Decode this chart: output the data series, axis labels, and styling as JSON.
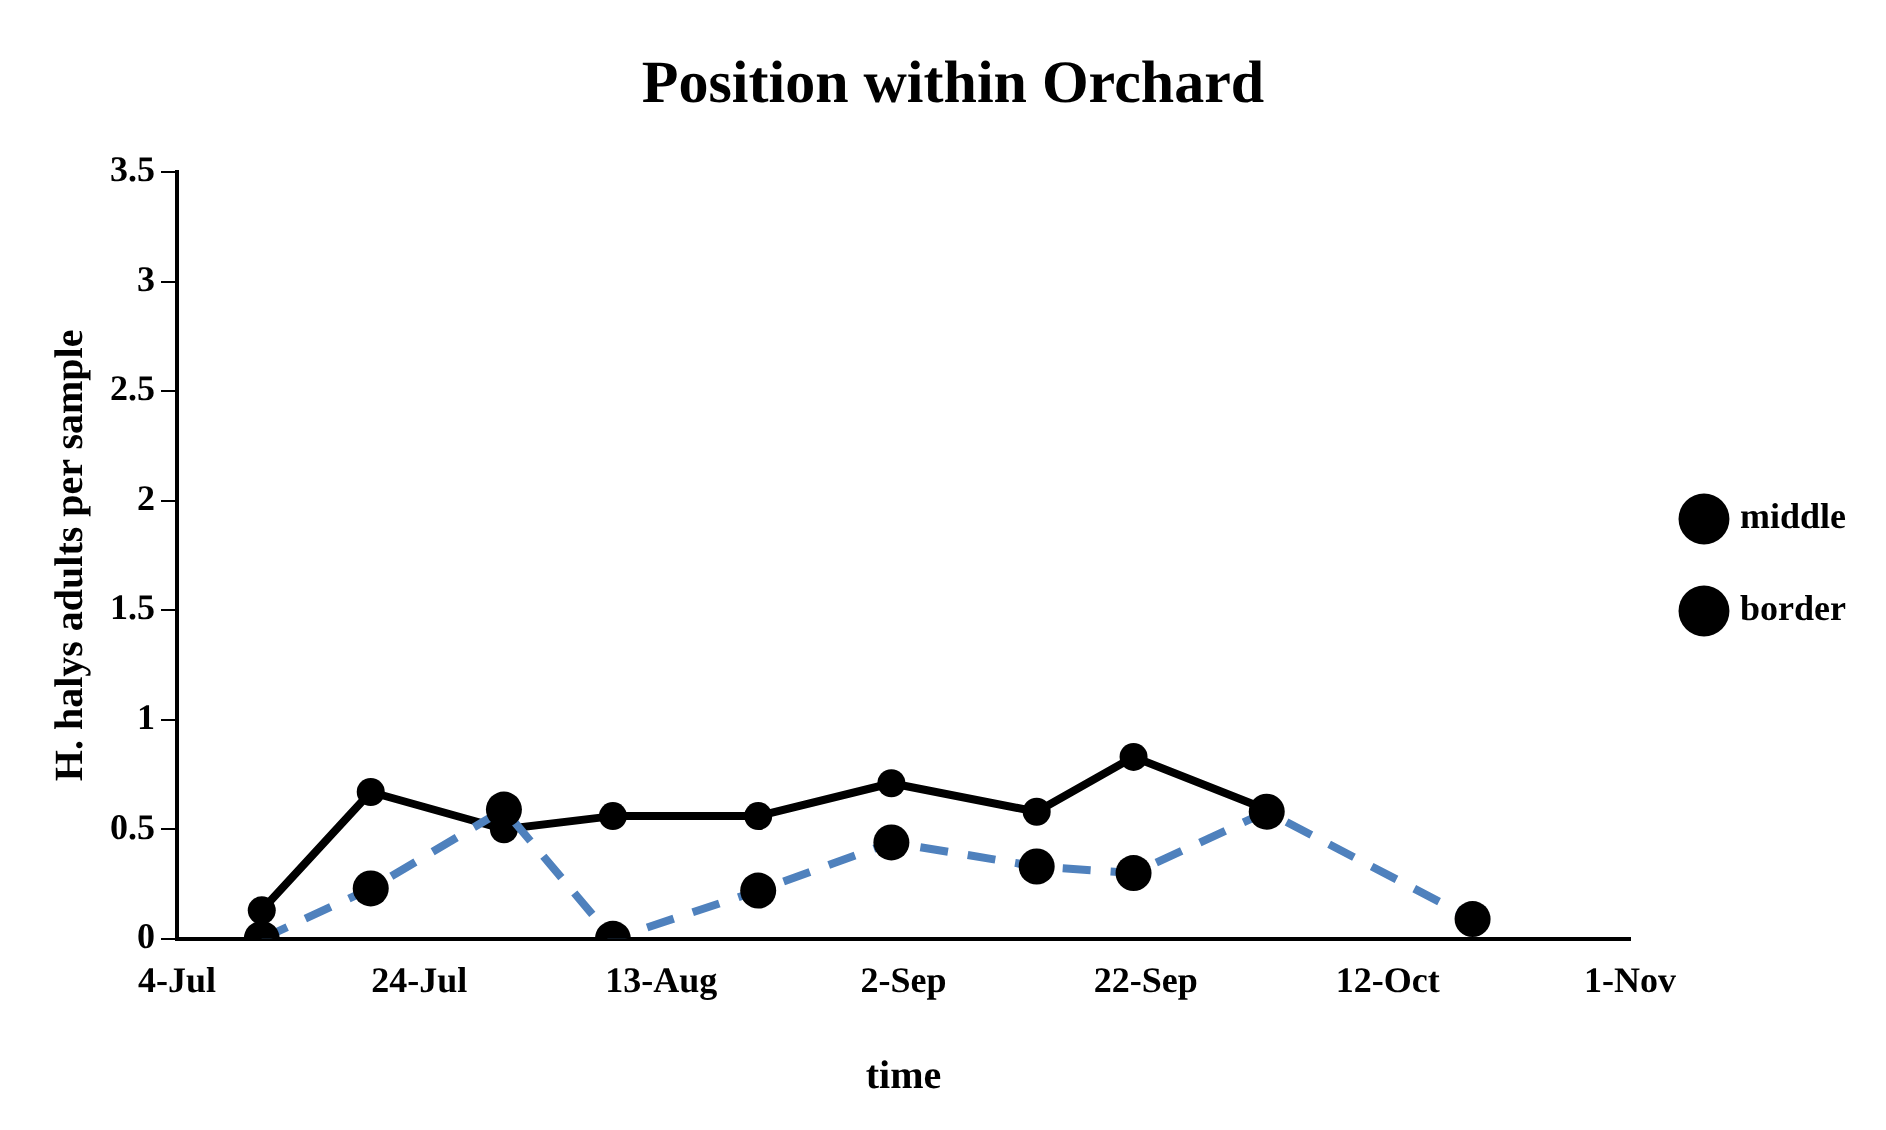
{
  "chart_data": {
    "type": "line",
    "title": "Position within Orchard",
    "xlabel": "time",
    "ylabel": "H. halys adults per sample",
    "x": [
      "--07-11",
      "--07-20",
      "--07-31",
      "--08-09",
      "--08-21",
      "--09-01",
      "--09-13",
      "--09-21",
      "--10-02",
      "--10-19"
    ],
    "series": [
      {
        "name": "border",
        "color": "#000000",
        "line_style": "solid",
        "values": [
          0.13,
          0.67,
          0.5,
          0.56,
          0.56,
          0.71,
          0.58,
          0.83,
          0.59,
          null
        ]
      },
      {
        "name": "middle",
        "color": "#4f81bd",
        "line_style": "dashed",
        "values": [
          0,
          0.23,
          0.59,
          0,
          0.22,
          0.44,
          0.33,
          0.3,
          0.58,
          0.09
        ]
      }
    ],
    "xlim": [
      "--07-04",
      "--11-01"
    ],
    "xticks": [
      {
        "value": "--07-04",
        "label": "4-Jul"
      },
      {
        "value": "--07-24",
        "label": "24-Jul"
      },
      {
        "value": "--08-13",
        "label": "13-Aug"
      },
      {
        "value": "--09-02",
        "label": "2-Sep"
      },
      {
        "value": "--09-22",
        "label": "22-Sep"
      },
      {
        "value": "--10-12",
        "label": "12-Oct"
      },
      {
        "value": "--11-01",
        "label": "1-Nov"
      }
    ],
    "ylim": [
      0,
      3.5
    ],
    "yticks": [
      0,
      0.5,
      1,
      1.5,
      2,
      2.5,
      3,
      3.5
    ],
    "grid": false,
    "legend": "right",
    "marker": "circle"
  }
}
